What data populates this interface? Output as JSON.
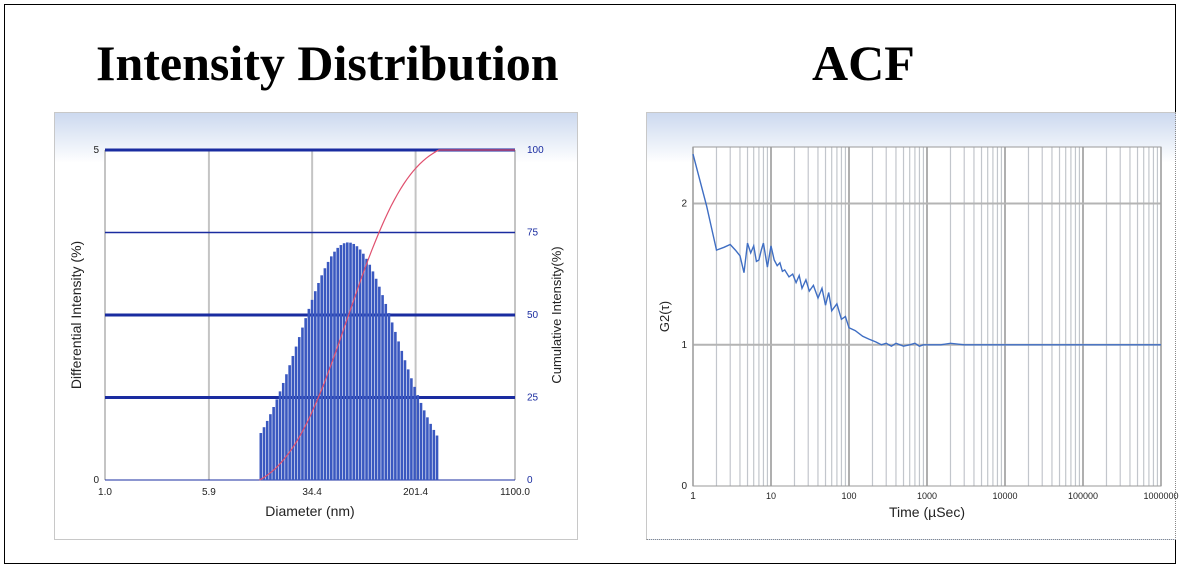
{
  "titles": {
    "left": "Intensity Distribution",
    "right": "ACF"
  },
  "chart_data": [
    {
      "type": "bar",
      "xlabel": "Diameter (nm)",
      "ylabel": "Differential Intensity (%)",
      "y2label": "Cumulative Intensity(%)",
      "x_scale": "log",
      "xlim": [
        1.0,
        1100.0
      ],
      "ylim": [
        0,
        5
      ],
      "y2lim": [
        0,
        100
      ],
      "x_ticks": [
        "1.0",
        "5.9",
        "34.4",
        "201.4",
        "1100.0"
      ],
      "x_tick_values": [
        1.0,
        5.9,
        34.4,
        201.4,
        1100.0
      ],
      "y_ticks": [
        "0",
        "5"
      ],
      "y_tick_values": [
        0,
        5
      ],
      "y2_ticks": [
        "0",
        "25",
        "50",
        "75",
        "100"
      ],
      "y2_tick_values": [
        0,
        25,
        50,
        75,
        100
      ],
      "histogram": {
        "peak_diameter": 64.0,
        "peak_value": 3.6,
        "log_sigma": 0.72,
        "d_min": 14.0,
        "d_max": 300.0,
        "bins": 56
      },
      "cumulative_curve_color": "#e0506e",
      "bar_color": "#3a58c0",
      "grid": true
    },
    {
      "type": "line",
      "xlabel": "Time (µSec)",
      "ylabel": "G2(τ)",
      "x_scale": "log",
      "xlim": [
        1,
        1000000
      ],
      "ylim": [
        0,
        2.4
      ],
      "x_ticks": [
        "1",
        "10",
        "100",
        "1000",
        "10000",
        "100000",
        "1000000"
      ],
      "x_tick_values": [
        1,
        10,
        100,
        1000,
        10000,
        100000,
        1000000
      ],
      "y_ticks": [
        "0",
        "1",
        "2"
      ],
      "y_tick_values": [
        0,
        1,
        2
      ],
      "series": [
        {
          "x": [
            1,
            1.5,
            2,
            2.5,
            3,
            3.5,
            4,
            4.5,
            5,
            5.5,
            6,
            6.5,
            7,
            7.5,
            8,
            9,
            10,
            11,
            12,
            13,
            14,
            15,
            17,
            19,
            21,
            23,
            25,
            28,
            31,
            35,
            40,
            45,
            50,
            55,
            60,
            70,
            80,
            90,
            100,
            120,
            150,
            180,
            220,
            260,
            300,
            350,
            400,
            500,
            600,
            700,
            800,
            900,
            1000,
            1500,
            2000,
            3000,
            5000,
            10000,
            30000,
            100000,
            300000,
            1000000
          ],
          "y": [
            2.35,
            1.98,
            1.67,
            1.69,
            1.71,
            1.67,
            1.63,
            1.51,
            1.72,
            1.65,
            1.7,
            1.59,
            1.6,
            1.67,
            1.72,
            1.55,
            1.7,
            1.6,
            1.56,
            1.58,
            1.52,
            1.53,
            1.48,
            1.5,
            1.44,
            1.49,
            1.4,
            1.46,
            1.38,
            1.42,
            1.33,
            1.4,
            1.28,
            1.37,
            1.24,
            1.29,
            1.18,
            1.2,
            1.12,
            1.1,
            1.06,
            1.04,
            1.02,
            1.0,
            1.01,
            0.99,
            1.01,
            0.99,
            1.0,
            1.01,
            0.99,
            1.0,
            1.0,
            1.0,
            1.01,
            1.0,
            1.0,
            1.0,
            1.0,
            1.0,
            1.0,
            1.0
          ]
        }
      ],
      "line_color": "#3f6ec3",
      "grid": true
    }
  ]
}
